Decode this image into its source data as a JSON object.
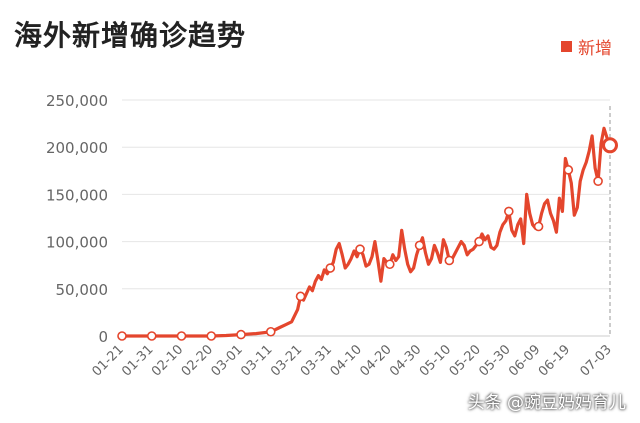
{
  "title": "海外新增确诊趋势",
  "watermark": "头条 @豌豆妈妈育儿",
  "colors": {
    "series": "#e4462d",
    "grid": "#e6e6e6",
    "axis_text": "#666666"
  },
  "chart_data": {
    "type": "line",
    "ylim": [
      0,
      250000
    ],
    "yticks": [
      0,
      50000,
      100000,
      150000,
      200000,
      250000
    ],
    "ytick_labels": [
      "0",
      "50,000",
      "100,000",
      "150,000",
      "200,000",
      "250,000"
    ],
    "xticks": [
      "01-21",
      "01-31",
      "02-10",
      "02-20",
      "03-01",
      "03-11",
      "03-21",
      "03-31",
      "04-10",
      "04-20",
      "04-30",
      "05-10",
      "05-20",
      "05-30",
      "06-09",
      "06-19",
      "07-03"
    ],
    "grid": "horizontal",
    "legend_position": "top-right",
    "series": [
      {
        "name": "新增",
        "points": [
          [
            "01-21",
            0
          ],
          [
            "01-31",
            0
          ],
          [
            "02-10",
            0
          ],
          [
            "02-20",
            0
          ],
          [
            "02-25",
            500
          ],
          [
            "03-01",
            1500
          ],
          [
            "03-06",
            2500
          ],
          [
            "03-11",
            4500
          ],
          [
            "03-14",
            9000
          ],
          [
            "03-16",
            12000
          ],
          [
            "03-18",
            15000
          ],
          [
            "03-20",
            28000
          ],
          [
            "03-21",
            42000
          ],
          [
            "03-22",
            38000
          ],
          [
            "03-24",
            52000
          ],
          [
            "03-25",
            48000
          ],
          [
            "03-26",
            58000
          ],
          [
            "03-27",
            64000
          ],
          [
            "03-28",
            60000
          ],
          [
            "03-29",
            70000
          ],
          [
            "03-30",
            66000
          ],
          [
            "03-31",
            72000
          ],
          [
            "04-01",
            78000
          ],
          [
            "04-02",
            92000
          ],
          [
            "04-03",
            98000
          ],
          [
            "04-04",
            86000
          ],
          [
            "04-05",
            72000
          ],
          [
            "04-06",
            76000
          ],
          [
            "04-07",
            82000
          ],
          [
            "04-08",
            90000
          ],
          [
            "04-09",
            84000
          ],
          [
            "04-10",
            92000
          ],
          [
            "04-11",
            86000
          ],
          [
            "04-12",
            74000
          ],
          [
            "04-13",
            76000
          ],
          [
            "04-14",
            84000
          ],
          [
            "04-15",
            100000
          ],
          [
            "04-16",
            80000
          ],
          [
            "04-17",
            58000
          ],
          [
            "04-18",
            82000
          ],
          [
            "04-19",
            78000
          ],
          [
            "04-20",
            76000
          ],
          [
            "04-21",
            86000
          ],
          [
            "04-22",
            80000
          ],
          [
            "04-23",
            84000
          ],
          [
            "04-24",
            112000
          ],
          [
            "04-25",
            92000
          ],
          [
            "04-26",
            76000
          ],
          [
            "04-27",
            68000
          ],
          [
            "04-28",
            72000
          ],
          [
            "04-29",
            86000
          ],
          [
            "04-30",
            96000
          ],
          [
            "05-01",
            104000
          ],
          [
            "05-02",
            88000
          ],
          [
            "05-03",
            76000
          ],
          [
            "05-04",
            82000
          ],
          [
            "05-05",
            96000
          ],
          [
            "05-06",
            88000
          ],
          [
            "05-07",
            78000
          ],
          [
            "05-08",
            102000
          ],
          [
            "05-09",
            94000
          ],
          [
            "05-10",
            80000
          ],
          [
            "05-11",
            82000
          ],
          [
            "05-12",
            88000
          ],
          [
            "05-13",
            94000
          ],
          [
            "05-14",
            100000
          ],
          [
            "05-15",
            96000
          ],
          [
            "05-16",
            86000
          ],
          [
            "05-17",
            90000
          ],
          [
            "05-18",
            92000
          ],
          [
            "05-19",
            96000
          ],
          [
            "05-20",
            100000
          ],
          [
            "05-21",
            108000
          ],
          [
            "05-22",
            102000
          ],
          [
            "05-23",
            106000
          ],
          [
            "05-24",
            94000
          ],
          [
            "05-25",
            92000
          ],
          [
            "05-26",
            96000
          ],
          [
            "05-27",
            110000
          ],
          [
            "05-28",
            118000
          ],
          [
            "05-29",
            122000
          ],
          [
            "05-30",
            132000
          ],
          [
            "05-31",
            112000
          ],
          [
            "06-01",
            106000
          ],
          [
            "06-02",
            118000
          ],
          [
            "06-03",
            124000
          ],
          [
            "06-04",
            98000
          ],
          [
            "06-05",
            150000
          ],
          [
            "06-06",
            130000
          ],
          [
            "06-07",
            118000
          ],
          [
            "06-08",
            114000
          ],
          [
            "06-09",
            116000
          ],
          [
            "06-10",
            130000
          ],
          [
            "06-11",
            140000
          ],
          [
            "06-12",
            144000
          ],
          [
            "06-13",
            130000
          ],
          [
            "06-14",
            122000
          ],
          [
            "06-15",
            110000
          ],
          [
            "06-16",
            146000
          ],
          [
            "06-17",
            132000
          ],
          [
            "06-18",
            188000
          ],
          [
            "06-19",
            176000
          ],
          [
            "06-20",
            162000
          ],
          [
            "06-21",
            128000
          ],
          [
            "06-22",
            136000
          ],
          [
            "06-23",
            164000
          ],
          [
            "06-24",
            176000
          ],
          [
            "06-25",
            184000
          ],
          [
            "06-26",
            196000
          ],
          [
            "06-27",
            212000
          ],
          [
            "06-28",
            178000
          ],
          [
            "06-29",
            164000
          ],
          [
            "06-30",
            204000
          ],
          [
            "07-01",
            220000
          ],
          [
            "07-02",
            210000
          ],
          [
            "07-03",
            202000
          ]
        ],
        "markers": [
          [
            "01-21",
            0
          ],
          [
            "01-31",
            0
          ],
          [
            "02-10",
            0
          ],
          [
            "02-20",
            0
          ],
          [
            "03-01",
            1500
          ],
          [
            "03-11",
            4500
          ],
          [
            "03-21",
            42000
          ],
          [
            "03-31",
            72000
          ],
          [
            "04-10",
            92000
          ],
          [
            "04-20",
            76000
          ],
          [
            "04-30",
            96000
          ],
          [
            "05-10",
            80000
          ],
          [
            "05-20",
            100000
          ],
          [
            "05-30",
            132000
          ],
          [
            "06-09",
            116000
          ],
          [
            "06-19",
            176000
          ],
          [
            "06-29",
            164000
          ],
          [
            "07-03",
            202000
          ]
        ]
      }
    ]
  }
}
